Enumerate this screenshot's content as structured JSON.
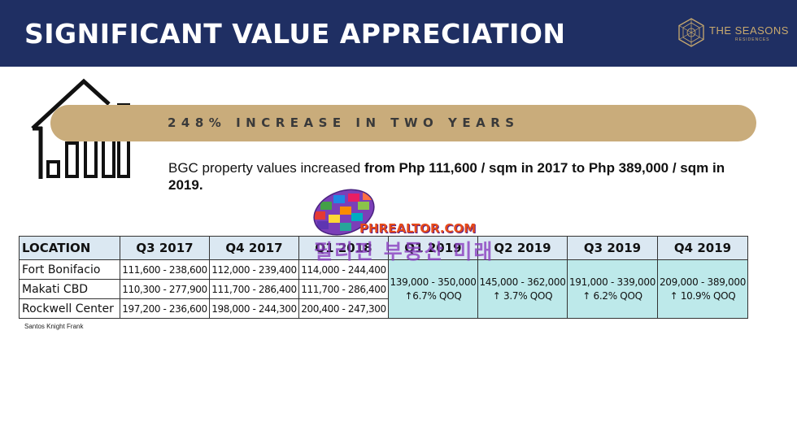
{
  "header": {
    "title": "SIGNIFICANT VALUE APPRECIATION",
    "brand_name": "THE SEASONS",
    "brand_sub": "RESIDENCES",
    "background_color": "#1f2f63",
    "brand_color": "#c8a96e"
  },
  "banner": {
    "text": "248% INCREASE IN TWO YEARS",
    "color": "#c9ac7b"
  },
  "description": {
    "lead": "BGC property values increased ",
    "emphasis": "from Php 111,600 / sqm in 2017 to Php 389,000 / sqm in 2019."
  },
  "watermark": {
    "text": "PHREALTOR.COM",
    "korean": "필리핀 부동산 미래",
    "icon": "mosaic-oval-logo"
  },
  "table": {
    "headers": [
      "LOCATION",
      "Q3 2017",
      "Q4 2017",
      "Q1 2018",
      "Q1 2019",
      "Q2 2019",
      "Q3 2019",
      "Q4 2019"
    ],
    "rows": [
      {
        "location": "Fort Bonifacio",
        "q3_2017": "111,600 - 238,600",
        "q4_2017": "112,000 - 239,400",
        "q1_2018": "114,000 - 244,400"
      },
      {
        "location": "Makati CBD",
        "q3_2017": "110,300 - 277,900",
        "q4_2017": "111,700 - 286,400",
        "q1_2018": "111,700 - 286,400"
      },
      {
        "location": "Rockwell Center",
        "q3_2017": "197,200 - 236,600",
        "q4_2017": "198,000 - 244,300",
        "q1_2018": "200,400 - 247,300"
      }
    ],
    "merged_2019": [
      {
        "range": "139,000 - 350,000",
        "change": "↑6.7% QOQ"
      },
      {
        "range": "145,000 - 362,000",
        "change": "↑ 3.7% QOQ"
      },
      {
        "range": "191,000 - 339,000",
        "change": "↑ 6.2% QOQ"
      },
      {
        "range": "209,000 - 389,000",
        "change": "↑ 10.9% QOQ"
      }
    ],
    "header_color": "#dbe8f2",
    "highlight_color": "#bde9ea"
  },
  "source": "Santos Knight Frank"
}
